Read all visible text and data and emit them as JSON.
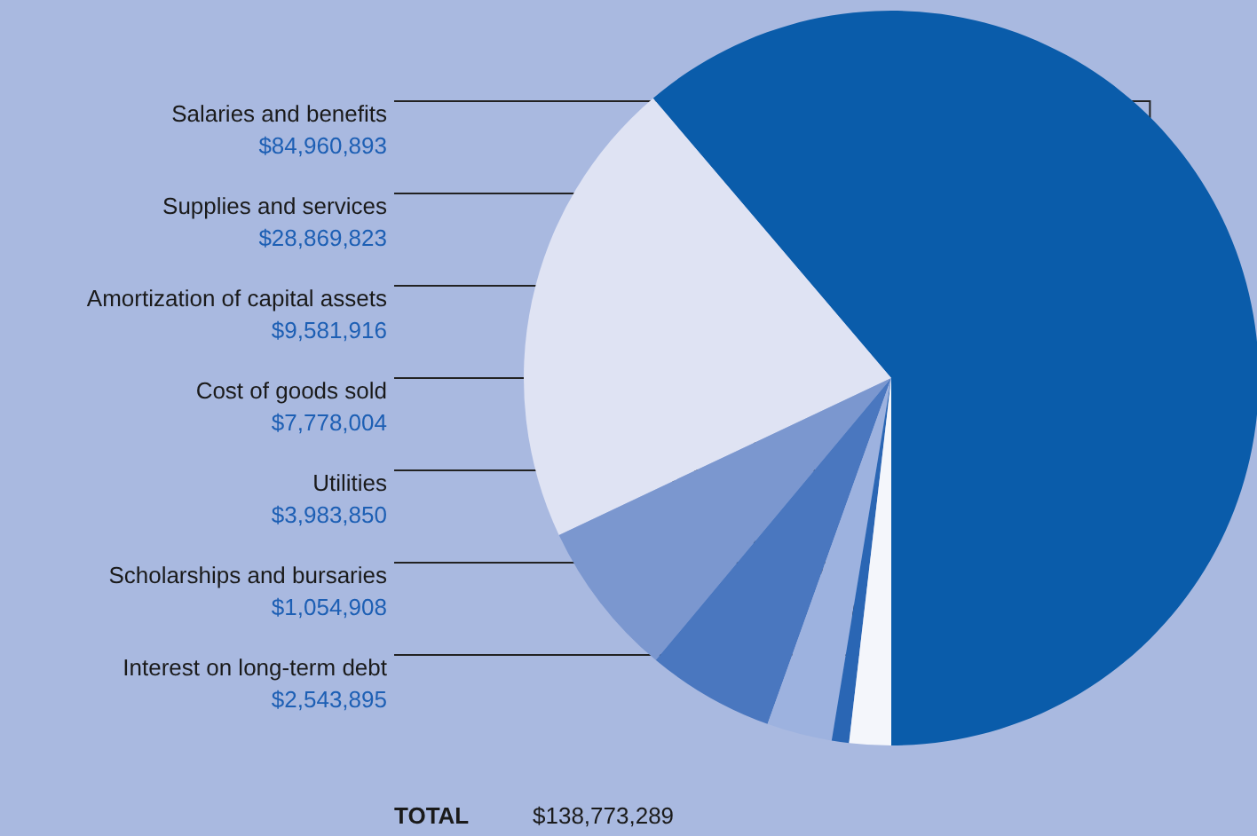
{
  "chart_data": {
    "type": "pie",
    "categories": [
      "Salaries and benefits",
      "Supplies and services",
      "Amortization of capital assets",
      "Cost of goods sold",
      "Utilities",
      "Scholarships and bursaries",
      "Interest on long-term debt"
    ],
    "values": [
      84960893,
      28869823,
      9581916,
      7778004,
      3983850,
      1054908,
      2543895
    ],
    "value_labels": [
      "$84,960,893",
      "$28,869,823",
      "$9,581,916",
      "$7,778,004",
      "$3,983,850",
      "$1,054,908",
      "$2,543,895"
    ],
    "colors": [
      "#0a5caa",
      "#dfe3f3",
      "#7b97cf",
      "#4a77bf",
      "#9db2df",
      "#2a66b4",
      "#f4f6fb"
    ],
    "annotations": [
      "TOTAL",
      "$138,773,289"
    ],
    "legend": false
  }
}
